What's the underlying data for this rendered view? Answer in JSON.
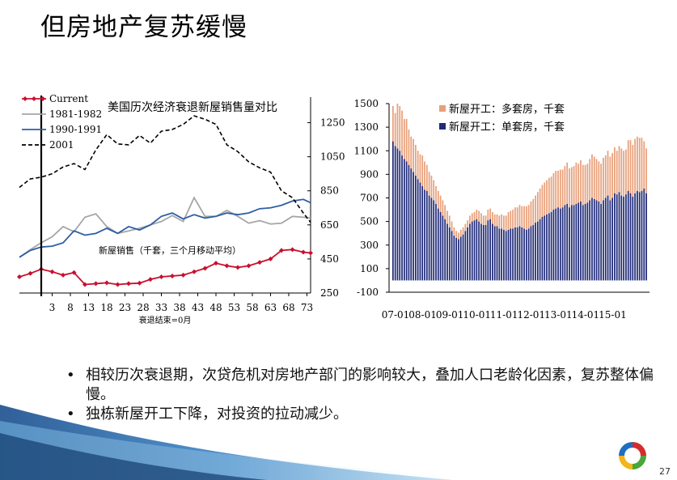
{
  "slide": {
    "title": "但房地产复苏缓慢",
    "bullets": [
      "相较历次衰退期，次贷危机对房地产部门的影响较大，叠加人口老龄化因素，复苏整体偏慢。",
      "独栋新屋开工下降，对投资的拉动减少。"
    ],
    "page_number": "27"
  },
  "chart_data": [
    {
      "type": "line",
      "title": "美国历次经济衰退新屋销售量对比",
      "annotation": "新屋销售（千套，三个月移动平均）",
      "xlabel": "衰退结束=0月",
      "x_range": [
        -6,
        74
      ],
      "x_ticks": [
        3,
        8,
        13,
        18,
        23,
        28,
        33,
        38,
        43,
        48,
        53,
        58,
        63,
        68,
        73
      ],
      "ylim": [
        250,
        1400
      ],
      "y_ticks": [
        250,
        450,
        650,
        850,
        1050,
        1250
      ],
      "y_axis_side": "right",
      "vertical_marker_x": 0,
      "grid": false,
      "legend_position": "top-left",
      "series": [
        {
          "name": "Current",
          "color": "#c8102e",
          "style": "solid-diamond",
          "x": [
            -6,
            -3,
            0,
            3,
            6,
            9,
            12,
            15,
            18,
            21,
            24,
            27,
            30,
            33,
            36,
            39,
            42,
            45,
            48,
            51,
            54,
            57,
            60,
            63,
            66,
            69,
            72,
            74
          ],
          "y": [
            345,
            365,
            390,
            375,
            355,
            370,
            300,
            305,
            310,
            300,
            305,
            308,
            330,
            345,
            350,
            355,
            375,
            395,
            425,
            410,
            400,
            410,
            430,
            450,
            500,
            505,
            490,
            485
          ]
        },
        {
          "name": "1981-1982",
          "color": "#a6a6a6",
          "style": "solid",
          "x": [
            -6,
            -3,
            0,
            3,
            6,
            9,
            12,
            15,
            18,
            21,
            24,
            27,
            30,
            33,
            36,
            39,
            42,
            45,
            48,
            51,
            54,
            57,
            60,
            63,
            66,
            69,
            72,
            74
          ],
          "y": [
            460,
            505,
            545,
            580,
            640,
            610,
            695,
            715,
            640,
            600,
            615,
            630,
            650,
            670,
            705,
            670,
            810,
            700,
            700,
            735,
            700,
            660,
            675,
            655,
            660,
            700,
            695,
            690
          ]
        },
        {
          "name": "1990-1991",
          "color": "#2e5fa4",
          "style": "solid",
          "x": [
            -6,
            -3,
            0,
            3,
            6,
            9,
            12,
            15,
            18,
            21,
            24,
            27,
            30,
            33,
            36,
            39,
            42,
            45,
            48,
            51,
            54,
            57,
            60,
            63,
            66,
            69,
            72,
            74
          ],
          "y": [
            460,
            500,
            520,
            525,
            545,
            615,
            590,
            600,
            630,
            600,
            640,
            620,
            650,
            700,
            720,
            685,
            710,
            690,
            700,
            720,
            710,
            720,
            745,
            750,
            765,
            790,
            800,
            780
          ]
        },
        {
          "name": "2001",
          "color": "#000000",
          "style": "dashed",
          "x": [
            -6,
            -3,
            0,
            3,
            6,
            9,
            12,
            15,
            18,
            21,
            24,
            27,
            30,
            33,
            36,
            39,
            42,
            45,
            48,
            51,
            54,
            57,
            60,
            63,
            66,
            69,
            72,
            74
          ],
          "y": [
            870,
            920,
            930,
            950,
            990,
            1010,
            975,
            1090,
            1180,
            1125,
            1120,
            1175,
            1130,
            1200,
            1210,
            1240,
            1290,
            1270,
            1240,
            1120,
            1080,
            1020,
            985,
            960,
            850,
            810,
            720,
            665
          ]
        }
      ]
    },
    {
      "type": "bar",
      "stacked": true,
      "title": "",
      "categories_ticks": [
        "07-01",
        "08-01",
        "09-01",
        "10-01",
        "11-01",
        "12-01",
        "13-01",
        "14-01",
        "15-01"
      ],
      "months_per_tick": 12,
      "ylim": [
        -100,
        1500
      ],
      "y_ticks": [
        -100,
        100,
        300,
        500,
        700,
        900,
        1100,
        1300,
        1500
      ],
      "grid": false,
      "legend_position": "top-right",
      "series": [
        {
          "name": "新屋开工：单套房，千套",
          "color": "#1f2a78",
          "values": [
            1180,
            1140,
            1120,
            1100,
            1060,
            1030,
            1010,
            980,
            950,
            920,
            890,
            860,
            830,
            800,
            770,
            760,
            720,
            700,
            680,
            650,
            610,
            580,
            550,
            520,
            480,
            450,
            420,
            380,
            360,
            350,
            370,
            390,
            420,
            450,
            480,
            500,
            510,
            520,
            500,
            480,
            470,
            470,
            510,
            520,
            480,
            460,
            460,
            440,
            440,
            430,
            420,
            430,
            440,
            440,
            450,
            450,
            460,
            450,
            440,
            430,
            440,
            460,
            470,
            490,
            500,
            520,
            540,
            550,
            560,
            570,
            580,
            600,
            610,
            620,
            610,
            620,
            640,
            650,
            620,
            640,
            640,
            650,
            660,
            670,
            640,
            650,
            660,
            680,
            700,
            690,
            680,
            670,
            650,
            680,
            700,
            720,
            680,
            700,
            740,
            730,
            750,
            720,
            710,
            730,
            760,
            740,
            710,
            740,
            760,
            750,
            760,
            780,
            740
          ]
        },
        {
          "name": "新屋开工：多套房，千套",
          "color": "#e8a07a",
          "values": [
            300,
            280,
            380,
            380,
            380,
            340,
            360,
            300,
            270,
            280,
            260,
            240,
            240,
            260,
            240,
            220,
            200,
            190,
            170,
            150,
            150,
            140,
            130,
            120,
            110,
            100,
            80,
            70,
            60,
            55,
            60,
            60,
            60,
            60,
            70,
            70,
            70,
            80,
            90,
            90,
            80,
            80,
            90,
            90,
            100,
            100,
            100,
            110,
            120,
            120,
            130,
            150,
            150,
            160,
            170,
            170,
            180,
            180,
            190,
            200,
            200,
            210,
            220,
            230,
            250,
            260,
            270,
            280,
            290,
            300,
            300,
            310,
            320,
            310,
            330,
            320,
            330,
            350,
            330,
            320,
            330,
            350,
            330,
            350,
            340,
            330,
            330,
            350,
            370,
            360,
            350,
            340,
            340,
            360,
            360,
            380,
            370,
            380,
            390,
            370,
            390,
            400,
            390,
            380,
            430,
            450,
            440,
            460,
            460,
            460,
            450,
            400,
            380
          ]
        }
      ]
    }
  ],
  "colors": {
    "banner_dark": "#1a4e8e",
    "banner_light": "#6fb4e0",
    "logo_red": "#d62b2b",
    "logo_blue": "#1e6fc1",
    "logo_yellow": "#f2b51b",
    "logo_green": "#4aa63d"
  }
}
